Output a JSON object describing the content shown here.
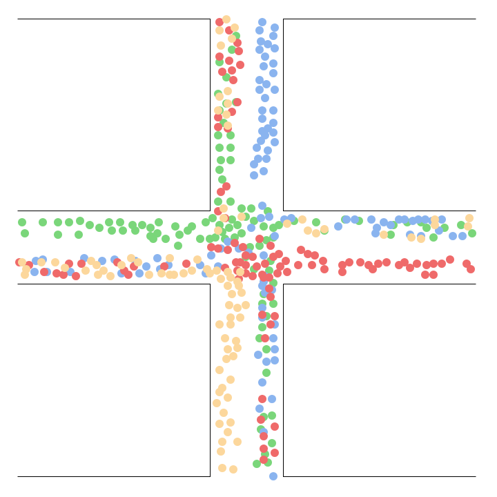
{
  "colors": {
    "green": "#7ad67a",
    "blue": "#8ab4ef",
    "red": "#ef6a6a",
    "tan": "#fcd79c",
    "outline": "#000000"
  },
  "agent_groups": [
    {
      "color": "green",
      "count": 108
    },
    {
      "color": "blue",
      "count": 103
    },
    {
      "color": "red",
      "count": 101
    },
    {
      "color": "tan",
      "count": 90
    }
  ]
}
